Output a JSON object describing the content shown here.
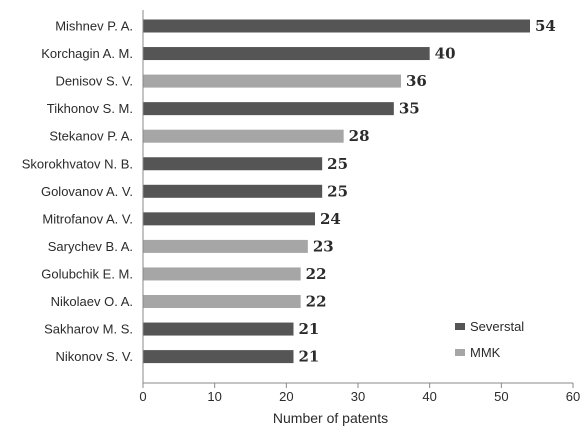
{
  "chart_data": {
    "type": "bar",
    "orientation": "horizontal",
    "categories": [
      "Mishnev P. A.",
      "Korchagin A. M.",
      "Denisov S. V.",
      "Tikhonov S. M.",
      "Stekanov P. A.",
      "Skorokhvatov N. B.",
      "Golovanov A. V.",
      "Mitrofanov A. V.",
      "Sarychev B. A.",
      "Golubchik E. M.",
      "Nikolaev O. A.",
      "Sakharov M. S.",
      "Nikonov S. V."
    ],
    "values": [
      54,
      40,
      36,
      35,
      28,
      25,
      25,
      24,
      23,
      22,
      22,
      21,
      21
    ],
    "series_index": [
      0,
      0,
      1,
      0,
      1,
      0,
      0,
      0,
      1,
      1,
      1,
      0,
      0
    ],
    "series": [
      {
        "name": "Severstal",
        "color": "#555555"
      },
      {
        "name": "MMK",
        "color": "#a6a6a6"
      }
    ],
    "data_labels": [
      "54",
      "40",
      "36",
      "35",
      "28",
      "25",
      "25",
      "24",
      "23",
      "22",
      "22",
      "21",
      "21"
    ],
    "xlabel": "Number of patents",
    "ylabel": "",
    "title": "",
    "xlim": [
      0,
      60
    ],
    "xticks": [
      0,
      10,
      20,
      30,
      40,
      50,
      60
    ],
    "tick_labels": [
      "0",
      "10",
      "20",
      "30",
      "40",
      "50",
      "60"
    ],
    "grid": false,
    "legend_position": "bottom-right"
  }
}
